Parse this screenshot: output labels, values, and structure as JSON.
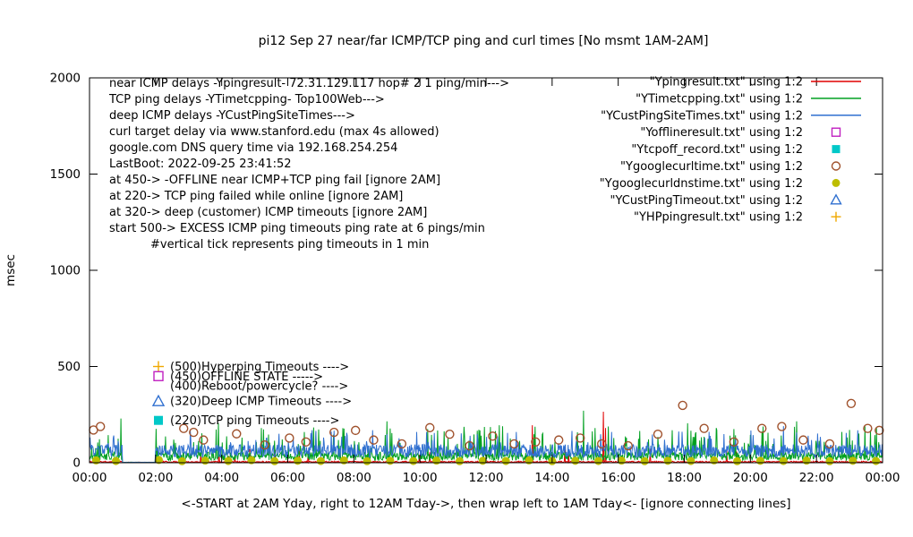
{
  "title": "pi12 Sep 27  near/far ICMP/TCP ping and curl times [No msmt 1AM-2AM]",
  "ylabel": "msec",
  "xlabel": "<-START at 2AM Yday, right to 12AM Tday->, then wrap left to 1AM Tday<- [ignore connecting lines]",
  "info_lines": [
    "near ICMP delays -Ypingresult- 72.31.129.117 hop# 2 1 ping/min--->",
    "TCP ping delays -YTimetcpping- Top100Web--->",
    "deep ICMP delays -YCustPingSiteTimes--->",
    "curl target delay via www.stanford.edu (max 4s allowed)",
    "google.com DNS query time via 192.168.254.254",
    "LastBoot: 2022-09-25 23:41:52",
    "at 450-> -OFFLINE near ICMP+TCP ping fail [ignore 2AM]",
    "at 220-> TCP ping failed while online [ignore 2AM]",
    "at 320-> deep (customer) ICMP timeouts [ignore 2AM]",
    "start 500-> EXCESS ICMP ping timeouts ping rate at 6 pings/min",
    "#vertical tick represents ping timeouts in 1 min"
  ],
  "level_annotations": [
    {
      "msec": 500,
      "marker": "plus",
      "color": "#f0a800",
      "text": "(500)Hyperping Timeouts ---->"
    },
    {
      "msec": 450,
      "marker": "open-square",
      "color": "#c020c0",
      "text": "(450)OFFLINE STATE ----->"
    },
    {
      "msec": 400,
      "marker": null,
      "color": null,
      "text": "(400)Reboot/powercycle? ---->"
    },
    {
      "msec": 320,
      "marker": "open-triangle",
      "color": "#3070d0",
      "text": "(320)Deep ICMP Timeouts ---->"
    },
    {
      "msec": 220,
      "marker": "filled-square",
      "color": "#00c8c8",
      "text": "(220)TCP ping Timeouts ---->"
    }
  ],
  "chart_data": {
    "type": "line",
    "title": "pi12 Sep 27  near/far ICMP/TCP ping and curl times [No msmt 1AM-2AM]",
    "ylabel": "msec",
    "ylim": [
      0,
      2000
    ],
    "xlim_hours": [
      0,
      24
    ],
    "yticks": [
      0,
      500,
      1000,
      1500,
      2000
    ],
    "xtick_hours": [
      0,
      2,
      4,
      6,
      8,
      10,
      12,
      14,
      16,
      18,
      20,
      22,
      24
    ],
    "xtick_labels": [
      "00:00",
      "02:00",
      "04:00",
      "06:00",
      "08:00",
      "10:00",
      "12:00",
      "14:00",
      "16:00",
      "18:00",
      "20:00",
      "22:00",
      "00:00"
    ],
    "gap_hours": [
      1,
      2
    ],
    "samples_per_hour": 60,
    "legend_position": "top-right",
    "grid": false,
    "series": [
      {
        "name": "Ypingresult",
        "legend": "\"Ypingresult.txt\" using 1:2",
        "style": "line",
        "color": "#e00000",
        "baseline": [
          1,
          8
        ],
        "spike_chance": 0.015,
        "spike_range": [
          30,
          80
        ],
        "seed": 11,
        "big_spikes": [
          [
            13.4,
            195
          ],
          [
            15.55,
            265
          ],
          [
            15.62,
            180
          ]
        ]
      },
      {
        "name": "YTimetcpping",
        "legend": "\"YTimetcpping.txt\" using 1:2",
        "style": "line",
        "color": "#00a020",
        "baseline": [
          12,
          55
        ],
        "spike_chance": 0.09,
        "spike_range": [
          70,
          190
        ],
        "seed": 22,
        "big_spikes": [
          [
            0.95,
            230
          ],
          [
            3.9,
            205
          ],
          [
            5.2,
            180
          ],
          [
            9.0,
            215
          ],
          [
            12.4,
            195
          ],
          [
            14.95,
            270
          ],
          [
            15.3,
            180
          ],
          [
            18.1,
            205
          ],
          [
            21.4,
            215
          ],
          [
            23.0,
            170
          ]
        ]
      },
      {
        "name": "YCustPingSiteTimes",
        "legend": "\"YCustPingSiteTimes.txt\" using 1:2",
        "style": "line",
        "color": "#3070d0",
        "baseline": [
          28,
          95
        ],
        "spike_chance": 0.05,
        "spike_range": [
          100,
          170
        ],
        "seed": 33,
        "big_spikes": [
          [
            9.9,
            160
          ],
          [
            14.6,
            165
          ],
          [
            21.0,
            190
          ],
          [
            22.9,
            155
          ]
        ]
      },
      {
        "name": "Yofflineresult",
        "legend": "\"Yofflineresult.txt\" using 1:2",
        "style": "open-square",
        "color": "#c020c0",
        "points": []
      },
      {
        "name": "Ytcpoff_record",
        "legend": "\"Ytcpoff_record.txt\" using 1:2",
        "style": "filled-square",
        "color": "#00c8c8",
        "points": []
      },
      {
        "name": "Ygooglecurltime",
        "legend": "\"Ygooglecurltime.txt\" using 1:2",
        "style": "open-circle",
        "color": "#a0522d",
        "points": [
          [
            0.12,
            170
          ],
          [
            0.33,
            188
          ],
          [
            2.85,
            178
          ],
          [
            3.15,
            158
          ],
          [
            3.45,
            118
          ],
          [
            4.45,
            150
          ],
          [
            5.3,
            92
          ],
          [
            6.05,
            128
          ],
          [
            6.55,
            108
          ],
          [
            7.4,
            158
          ],
          [
            8.05,
            168
          ],
          [
            8.6,
            118
          ],
          [
            9.45,
            98
          ],
          [
            10.3,
            182
          ],
          [
            10.9,
            148
          ],
          [
            11.5,
            88
          ],
          [
            12.2,
            138
          ],
          [
            12.85,
            98
          ],
          [
            13.5,
            108
          ],
          [
            14.2,
            118
          ],
          [
            14.85,
            128
          ],
          [
            15.5,
            98
          ],
          [
            16.3,
            88
          ],
          [
            17.2,
            148
          ],
          [
            17.95,
            298
          ],
          [
            18.6,
            178
          ],
          [
            19.5,
            108
          ],
          [
            20.35,
            178
          ],
          [
            20.95,
            188
          ],
          [
            21.6,
            118
          ],
          [
            22.4,
            98
          ],
          [
            23.05,
            308
          ],
          [
            23.55,
            178
          ],
          [
            23.9,
            168
          ]
        ]
      },
      {
        "name": "Ygooglecurldnstime",
        "legend": "\"Ygooglecurldnstime.txt\" using 1:2",
        "style": "filled-circle",
        "color": "#bdbd00",
        "points": [
          [
            0.2,
            12
          ],
          [
            0.8,
            9
          ],
          [
            2.1,
            14
          ],
          [
            2.8,
            8
          ],
          [
            3.5,
            11
          ],
          [
            4.2,
            9
          ],
          [
            4.9,
            13
          ],
          [
            5.6,
            8
          ],
          [
            6.3,
            10
          ],
          [
            7.0,
            9
          ],
          [
            7.7,
            12
          ],
          [
            8.4,
            8
          ],
          [
            9.1,
            10
          ],
          [
            9.8,
            9
          ],
          [
            10.5,
            11
          ],
          [
            11.2,
            8
          ],
          [
            11.9,
            10
          ],
          [
            12.6,
            9
          ],
          [
            13.3,
            12
          ],
          [
            14.0,
            8
          ],
          [
            14.7,
            10
          ],
          [
            15.4,
            9
          ],
          [
            16.1,
            11
          ],
          [
            16.8,
            8
          ],
          [
            17.5,
            10
          ],
          [
            18.2,
            9
          ],
          [
            18.9,
            12
          ],
          [
            19.6,
            8
          ],
          [
            20.3,
            10
          ],
          [
            21.0,
            9
          ],
          [
            21.7,
            11
          ],
          [
            22.4,
            8
          ],
          [
            23.1,
            10
          ],
          [
            23.8,
            9
          ]
        ]
      },
      {
        "name": "YCustPingTimeout",
        "legend": "\"YCustPingTimeout.txt\" using 1:2",
        "style": "open-triangle",
        "color": "#3070d0",
        "points": []
      },
      {
        "name": "YHPpingresult",
        "legend": "\"YHPpingresult.txt\" using 1:2",
        "style": "plus",
        "color": "#f0a800",
        "points": []
      }
    ]
  }
}
